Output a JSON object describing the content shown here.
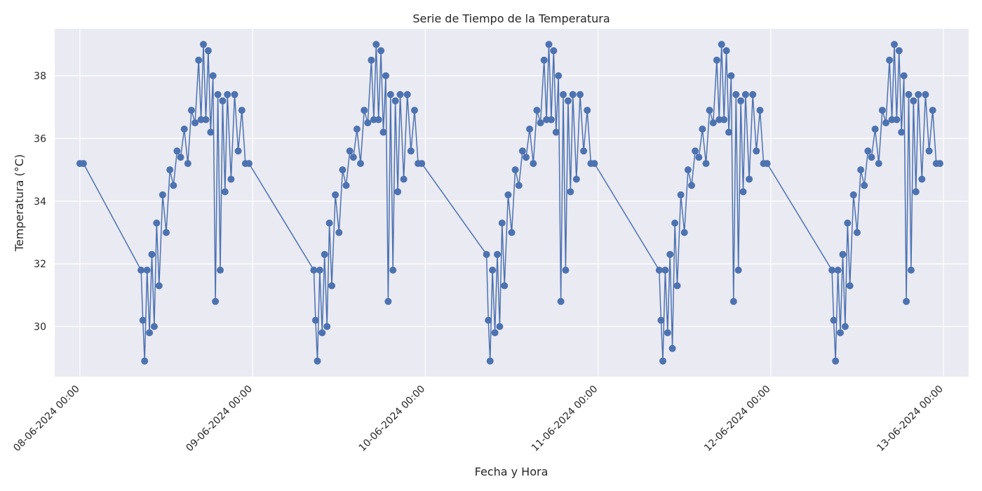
{
  "chart_data": {
    "type": "line",
    "title": "Serie de Tiempo de la Temperatura",
    "xlabel": "Fecha y Hora",
    "ylabel": "Temperatura (°C)",
    "xlim": [
      "2024-06-07 20:30",
      "2024-06-13 03:30"
    ],
    "ylim": [
      28.4,
      39.5
    ],
    "x_ticks": [
      "2024-06-08 00:00",
      "2024-06-09 00:00",
      "2024-06-10 00:00",
      "2024-06-11 00:00",
      "2024-06-12 00:00",
      "2024-06-13 00:00"
    ],
    "x_tick_labels": [
      "08-06-2024 00:00",
      "09-06-2024 00:00",
      "10-06-2024 00:00",
      "11-06-2024 00:00",
      "12-06-2024 00:00",
      "13-06-2024 00:00"
    ],
    "y_ticks": [
      30,
      32,
      34,
      36,
      38
    ],
    "y_tick_labels": [
      "30",
      "32",
      "34",
      "36",
      "38"
    ],
    "grid": true,
    "marker": "circle",
    "series": [
      {
        "color": "#4c72b0",
        "points": [
          [
            "2024-06-08 00:00",
            35.2
          ],
          [
            "2024-06-08 00:30",
            35.2
          ],
          [
            "2024-06-08 08:30",
            31.8
          ],
          [
            "2024-06-08 08:45",
            30.2
          ],
          [
            "2024-06-08 09:00",
            28.9
          ],
          [
            "2024-06-08 09:20",
            31.8
          ],
          [
            "2024-06-08 09:40",
            29.8
          ],
          [
            "2024-06-08 10:00",
            32.3
          ],
          [
            "2024-06-08 10:20",
            30.0
          ],
          [
            "2024-06-08 10:40",
            33.3
          ],
          [
            "2024-06-08 11:00",
            31.3
          ],
          [
            "2024-06-08 11:30",
            34.2
          ],
          [
            "2024-06-08 12:00",
            33.0
          ],
          [
            "2024-06-08 12:30",
            35.0
          ],
          [
            "2024-06-08 13:00",
            34.5
          ],
          [
            "2024-06-08 13:30",
            35.6
          ],
          [
            "2024-06-08 14:00",
            35.4
          ],
          [
            "2024-06-08 14:30",
            36.3
          ],
          [
            "2024-06-08 15:00",
            35.2
          ],
          [
            "2024-06-08 15:30",
            36.9
          ],
          [
            "2024-06-08 16:00",
            36.5
          ],
          [
            "2024-06-08 16:30",
            38.5
          ],
          [
            "2024-06-08 16:50",
            36.6
          ],
          [
            "2024-06-08 17:10",
            39.0
          ],
          [
            "2024-06-08 17:30",
            36.6
          ],
          [
            "2024-06-08 17:50",
            38.8
          ],
          [
            "2024-06-08 18:10",
            36.2
          ],
          [
            "2024-06-08 18:30",
            38.0
          ],
          [
            "2024-06-08 18:50",
            30.8
          ],
          [
            "2024-06-08 19:10",
            37.4
          ],
          [
            "2024-06-08 19:30",
            31.8
          ],
          [
            "2024-06-08 19:50",
            37.2
          ],
          [
            "2024-06-08 20:10",
            34.3
          ],
          [
            "2024-06-08 20:30",
            37.4
          ],
          [
            "2024-06-08 21:00",
            34.7
          ],
          [
            "2024-06-08 21:30",
            37.4
          ],
          [
            "2024-06-08 22:00",
            35.6
          ],
          [
            "2024-06-08 22:30",
            36.9
          ],
          [
            "2024-06-08 23:00",
            35.2
          ],
          [
            "2024-06-08 23:30",
            35.2
          ],
          [
            "2024-06-09 08:30",
            31.8
          ],
          [
            "2024-06-09 08:45",
            30.2
          ],
          [
            "2024-06-09 09:00",
            28.9
          ],
          [
            "2024-06-09 09:20",
            31.8
          ],
          [
            "2024-06-09 09:40",
            29.8
          ],
          [
            "2024-06-09 10:00",
            32.3
          ],
          [
            "2024-06-09 10:20",
            30.0
          ],
          [
            "2024-06-09 10:40",
            33.3
          ],
          [
            "2024-06-09 11:00",
            31.3
          ],
          [
            "2024-06-09 11:30",
            34.2
          ],
          [
            "2024-06-09 12:00",
            33.0
          ],
          [
            "2024-06-09 12:30",
            35.0
          ],
          [
            "2024-06-09 13:00",
            34.5
          ],
          [
            "2024-06-09 13:30",
            35.6
          ],
          [
            "2024-06-09 14:00",
            35.4
          ],
          [
            "2024-06-09 14:30",
            36.3
          ],
          [
            "2024-06-09 15:00",
            35.2
          ],
          [
            "2024-06-09 15:30",
            36.9
          ],
          [
            "2024-06-09 16:00",
            36.5
          ],
          [
            "2024-06-09 16:30",
            38.5
          ],
          [
            "2024-06-09 16:50",
            36.6
          ],
          [
            "2024-06-09 17:10",
            39.0
          ],
          [
            "2024-06-09 17:30",
            36.6
          ],
          [
            "2024-06-09 17:50",
            38.8
          ],
          [
            "2024-06-09 18:10",
            36.2
          ],
          [
            "2024-06-09 18:30",
            38.0
          ],
          [
            "2024-06-09 18:50",
            30.8
          ],
          [
            "2024-06-09 19:10",
            37.4
          ],
          [
            "2024-06-09 19:30",
            31.8
          ],
          [
            "2024-06-09 19:50",
            37.2
          ],
          [
            "2024-06-09 20:10",
            34.3
          ],
          [
            "2024-06-09 20:30",
            37.4
          ],
          [
            "2024-06-09 21:00",
            34.7
          ],
          [
            "2024-06-09 21:30",
            37.4
          ],
          [
            "2024-06-09 22:00",
            35.6
          ],
          [
            "2024-06-09 22:30",
            36.9
          ],
          [
            "2024-06-09 23:00",
            35.2
          ],
          [
            "2024-06-09 23:30",
            35.2
          ],
          [
            "2024-06-10 08:30",
            32.3
          ],
          [
            "2024-06-10 08:45",
            30.2
          ],
          [
            "2024-06-10 09:00",
            28.9
          ],
          [
            "2024-06-10 09:20",
            31.8
          ],
          [
            "2024-06-10 09:40",
            29.8
          ],
          [
            "2024-06-10 10:00",
            32.3
          ],
          [
            "2024-06-10 10:20",
            30.0
          ],
          [
            "2024-06-10 10:40",
            33.3
          ],
          [
            "2024-06-10 11:00",
            31.3
          ],
          [
            "2024-06-10 11:30",
            34.2
          ],
          [
            "2024-06-10 12:00",
            33.0
          ],
          [
            "2024-06-10 12:30",
            35.0
          ],
          [
            "2024-06-10 13:00",
            34.5
          ],
          [
            "2024-06-10 13:30",
            35.6
          ],
          [
            "2024-06-10 14:00",
            35.4
          ],
          [
            "2024-06-10 14:30",
            36.3
          ],
          [
            "2024-06-10 15:00",
            35.2
          ],
          [
            "2024-06-10 15:30",
            36.9
          ],
          [
            "2024-06-10 16:00",
            36.5
          ],
          [
            "2024-06-10 16:30",
            38.5
          ],
          [
            "2024-06-10 16:50",
            36.6
          ],
          [
            "2024-06-10 17:10",
            39.0
          ],
          [
            "2024-06-10 17:30",
            36.6
          ],
          [
            "2024-06-10 17:50",
            38.8
          ],
          [
            "2024-06-10 18:10",
            36.2
          ],
          [
            "2024-06-10 18:30",
            38.0
          ],
          [
            "2024-06-10 18:50",
            30.8
          ],
          [
            "2024-06-10 19:10",
            37.4
          ],
          [
            "2024-06-10 19:30",
            31.8
          ],
          [
            "2024-06-10 19:50",
            37.2
          ],
          [
            "2024-06-10 20:10",
            34.3
          ],
          [
            "2024-06-10 20:30",
            37.4
          ],
          [
            "2024-06-10 21:00",
            34.7
          ],
          [
            "2024-06-10 21:30",
            37.4
          ],
          [
            "2024-06-10 22:00",
            35.6
          ],
          [
            "2024-06-10 22:30",
            36.9
          ],
          [
            "2024-06-10 23:00",
            35.2
          ],
          [
            "2024-06-10 23:30",
            35.2
          ],
          [
            "2024-06-11 08:30",
            31.8
          ],
          [
            "2024-06-11 08:45",
            30.2
          ],
          [
            "2024-06-11 09:00",
            28.9
          ],
          [
            "2024-06-11 09:20",
            31.8
          ],
          [
            "2024-06-11 09:40",
            29.8
          ],
          [
            "2024-06-11 10:00",
            32.3
          ],
          [
            "2024-06-11 10:20",
            29.3
          ],
          [
            "2024-06-11 10:40",
            33.3
          ],
          [
            "2024-06-11 11:00",
            31.3
          ],
          [
            "2024-06-11 11:30",
            34.2
          ],
          [
            "2024-06-11 12:00",
            33.0
          ],
          [
            "2024-06-11 12:30",
            35.0
          ],
          [
            "2024-06-11 13:00",
            34.5
          ],
          [
            "2024-06-11 13:30",
            35.6
          ],
          [
            "2024-06-11 14:00",
            35.4
          ],
          [
            "2024-06-11 14:30",
            36.3
          ],
          [
            "2024-06-11 15:00",
            35.2
          ],
          [
            "2024-06-11 15:30",
            36.9
          ],
          [
            "2024-06-11 16:00",
            36.5
          ],
          [
            "2024-06-11 16:30",
            38.5
          ],
          [
            "2024-06-11 16:50",
            36.6
          ],
          [
            "2024-06-11 17:10",
            39.0
          ],
          [
            "2024-06-11 17:30",
            36.6
          ],
          [
            "2024-06-11 17:50",
            38.8
          ],
          [
            "2024-06-11 18:10",
            36.2
          ],
          [
            "2024-06-11 18:30",
            38.0
          ],
          [
            "2024-06-11 18:50",
            30.8
          ],
          [
            "2024-06-11 19:10",
            37.4
          ],
          [
            "2024-06-11 19:30",
            31.8
          ],
          [
            "2024-06-11 19:50",
            37.2
          ],
          [
            "2024-06-11 20:10",
            34.3
          ],
          [
            "2024-06-11 20:30",
            37.4
          ],
          [
            "2024-06-11 21:00",
            34.7
          ],
          [
            "2024-06-11 21:30",
            37.4
          ],
          [
            "2024-06-11 22:00",
            35.6
          ],
          [
            "2024-06-11 22:30",
            36.9
          ],
          [
            "2024-06-11 23:00",
            35.2
          ],
          [
            "2024-06-11 23:30",
            35.2
          ],
          [
            "2024-06-12 08:30",
            31.8
          ],
          [
            "2024-06-12 08:45",
            30.2
          ],
          [
            "2024-06-12 09:00",
            28.9
          ],
          [
            "2024-06-12 09:20",
            31.8
          ],
          [
            "2024-06-12 09:40",
            29.8
          ],
          [
            "2024-06-12 10:00",
            32.3
          ],
          [
            "2024-06-12 10:20",
            30.0
          ],
          [
            "2024-06-12 10:40",
            33.3
          ],
          [
            "2024-06-12 11:00",
            31.3
          ],
          [
            "2024-06-12 11:30",
            34.2
          ],
          [
            "2024-06-12 12:00",
            33.0
          ],
          [
            "2024-06-12 12:30",
            35.0
          ],
          [
            "2024-06-12 13:00",
            34.5
          ],
          [
            "2024-06-12 13:30",
            35.6
          ],
          [
            "2024-06-12 14:00",
            35.4
          ],
          [
            "2024-06-12 14:30",
            36.3
          ],
          [
            "2024-06-12 15:00",
            35.2
          ],
          [
            "2024-06-12 15:30",
            36.9
          ],
          [
            "2024-06-12 16:00",
            36.5
          ],
          [
            "2024-06-12 16:30",
            38.5
          ],
          [
            "2024-06-12 16:50",
            36.6
          ],
          [
            "2024-06-12 17:10",
            39.0
          ],
          [
            "2024-06-12 17:30",
            36.6
          ],
          [
            "2024-06-12 17:50",
            38.8
          ],
          [
            "2024-06-12 18:10",
            36.2
          ],
          [
            "2024-06-12 18:30",
            38.0
          ],
          [
            "2024-06-12 18:50",
            30.8
          ],
          [
            "2024-06-12 19:10",
            37.4
          ],
          [
            "2024-06-12 19:30",
            31.8
          ],
          [
            "2024-06-12 19:50",
            37.2
          ],
          [
            "2024-06-12 20:10",
            34.3
          ],
          [
            "2024-06-12 20:30",
            37.4
          ],
          [
            "2024-06-12 21:00",
            34.7
          ],
          [
            "2024-06-12 21:30",
            37.4
          ],
          [
            "2024-06-12 22:00",
            35.6
          ],
          [
            "2024-06-12 22:30",
            36.9
          ],
          [
            "2024-06-12 23:00",
            35.2
          ],
          [
            "2024-06-12 23:30",
            35.2
          ]
        ]
      }
    ]
  }
}
